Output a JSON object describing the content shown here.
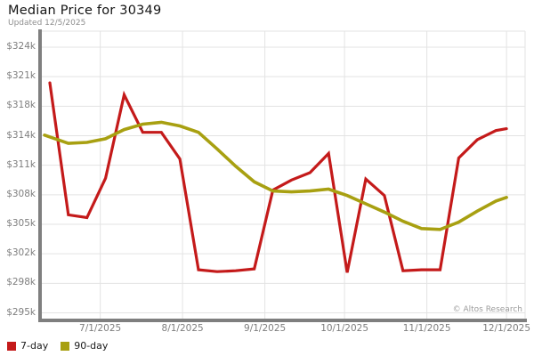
{
  "header": {
    "title": "Median Price for 30349",
    "subtitle": "Updated 12/5/2025"
  },
  "attribution": "© Altos Research",
  "legend": [
    {
      "label": "7-day",
      "color": "#c41a1a"
    },
    {
      "label": "90-day",
      "color": "#a8a011"
    }
  ],
  "colors": {
    "seven_day": "#c41a1a",
    "ninety_day": "#a8a011",
    "gridline": "#e3e3e3",
    "spine": "#7f7f7f",
    "tick_text": "#7e7e7e"
  },
  "chart_data": {
    "type": "line",
    "title": "Median Price for 30349",
    "subtitle": "Updated 12/5/2025",
    "xlabel": "",
    "ylabel": "",
    "grid": true,
    "legend_position": "bottom-left",
    "ylim": [
      295,
      324
    ],
    "y_tick_labels": [
      "$324k",
      "$321k",
      "$318k",
      "$314k",
      "$311k",
      "$308k",
      "$305k",
      "$302k",
      "$298k",
      "$295k"
    ],
    "x_months": [
      "7/1",
      "8/1",
      "9/1",
      "10/1",
      "11/1",
      "12/1"
    ],
    "x_tick_labels": [
      "7/1/2025",
      "8/1/2025",
      "9/1/2025",
      "10/1/2025",
      "11/1/2025",
      "12/1/2025"
    ],
    "units": "USD thousands",
    "series": [
      {
        "name": "7-day",
        "color": "#c41a1a",
        "points": [
          [
            "6/12",
            320.1
          ],
          [
            "6/19",
            305.7
          ],
          [
            "6/26",
            305.4
          ],
          [
            "7/3",
            309.7
          ],
          [
            "7/10",
            318.8
          ],
          [
            "7/17",
            314.7
          ],
          [
            "7/24",
            314.7
          ],
          [
            "7/31",
            311.8
          ],
          [
            "8/7",
            299.7
          ],
          [
            "8/14",
            299.5
          ],
          [
            "8/21",
            299.6
          ],
          [
            "8/28",
            299.8
          ],
          [
            "9/4",
            308.4
          ],
          [
            "9/11",
            309.5
          ],
          [
            "9/18",
            310.3
          ],
          [
            "9/25",
            312.4
          ],
          [
            "10/2",
            299.4
          ],
          [
            "10/9",
            309.6
          ],
          [
            "10/16",
            307.8
          ],
          [
            "10/23",
            299.6
          ],
          [
            "10/30",
            299.7
          ],
          [
            "11/6",
            299.7
          ],
          [
            "11/13",
            311.9
          ],
          [
            "11/20",
            313.9
          ],
          [
            "11/27",
            314.9
          ],
          [
            "12/1",
            315.1
          ]
        ]
      },
      {
        "name": "90-day",
        "color": "#a8a011",
        "points": [
          [
            "6/10",
            314.4
          ],
          [
            "6/19",
            313.5
          ],
          [
            "6/26",
            313.6
          ],
          [
            "7/3",
            314.0
          ],
          [
            "7/10",
            315.0
          ],
          [
            "7/17",
            315.6
          ],
          [
            "7/24",
            315.8
          ],
          [
            "7/31",
            315.4
          ],
          [
            "8/7",
            314.7
          ],
          [
            "8/14",
            312.9
          ],
          [
            "8/21",
            311.0
          ],
          [
            "8/28",
            309.3
          ],
          [
            "9/4",
            308.3
          ],
          [
            "9/11",
            308.2
          ],
          [
            "9/18",
            308.3
          ],
          [
            "9/25",
            308.5
          ],
          [
            "10/2",
            307.8
          ],
          [
            "10/9",
            306.9
          ],
          [
            "10/16",
            306.0
          ],
          [
            "10/23",
            305.0
          ],
          [
            "10/30",
            304.2
          ],
          [
            "11/6",
            304.1
          ],
          [
            "11/13",
            304.9
          ],
          [
            "11/20",
            306.1
          ],
          [
            "11/27",
            307.2
          ],
          [
            "12/1",
            307.6
          ]
        ]
      }
    ]
  }
}
